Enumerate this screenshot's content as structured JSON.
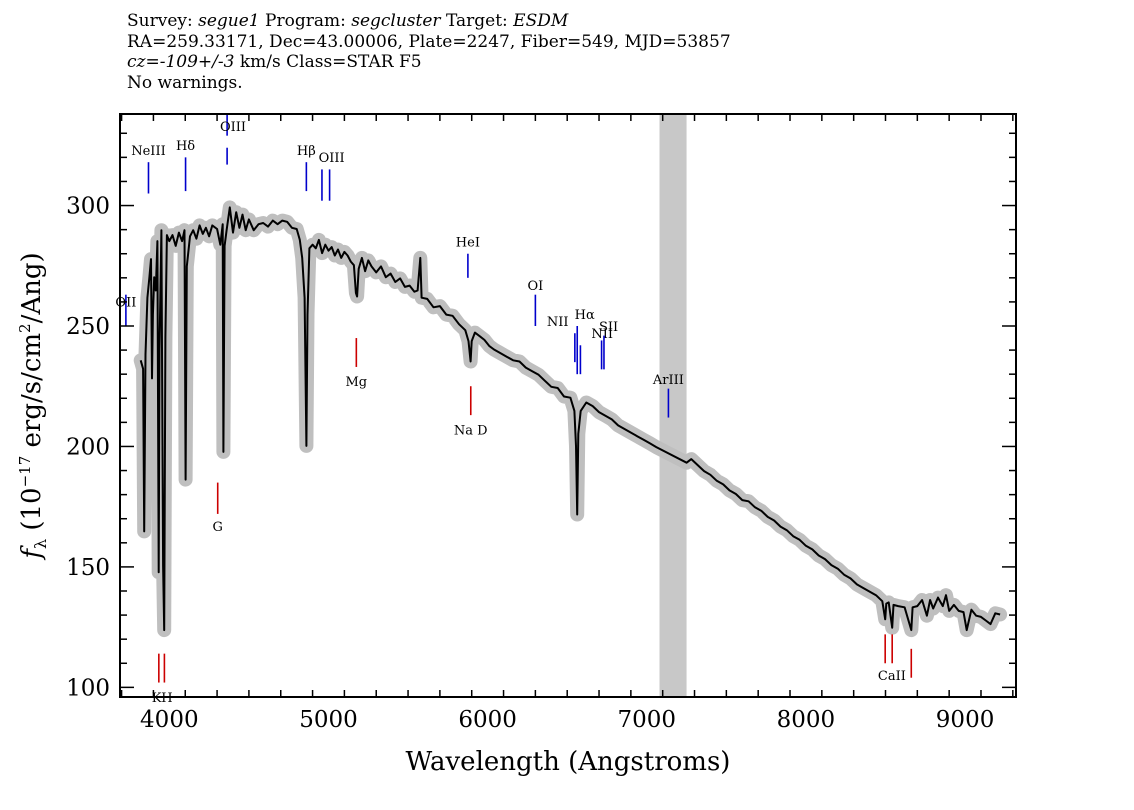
{
  "header": {
    "line1": [
      {
        "text": "Survey: ",
        "italic": false
      },
      {
        "text": "segue1",
        "italic": true
      },
      {
        "text": " Program: ",
        "italic": false
      },
      {
        "text": "segcluster",
        "italic": true
      },
      {
        "text": " Target: ",
        "italic": false
      },
      {
        "text": "ESDM",
        "italic": true
      }
    ],
    "line2": "RA=259.33171, Dec=43.00006, Plate=2247, Fiber=549, MJD=53857",
    "line3": [
      {
        "text": "cz=-109+/-3",
        "italic": true
      },
      {
        "text": " km/s Class=STAR F5",
        "italic": false
      }
    ],
    "line4": "No warnings."
  },
  "chart_data": {
    "type": "line",
    "xlabel": "Wavelength (Angstroms)",
    "ylabel_parts": {
      "f": "f",
      "sub": "λ",
      "open": " (10",
      "exp1": "−17",
      "mid": " erg/s/cm",
      "exp2": "2",
      "close": "/Ang)"
    },
    "xlim": [
      3690,
      9320
    ],
    "ylim": [
      96,
      338
    ],
    "xticks": [
      4000,
      5000,
      6000,
      7000,
      8000,
      9000
    ],
    "yticks": [
      100,
      150,
      200,
      250,
      300
    ],
    "masked_region": [
      7080,
      7250
    ],
    "series": [
      {
        "points": [
          [
            3820,
            236
          ],
          [
            3835,
            232
          ],
          [
            3842,
            165
          ],
          [
            3850,
            238
          ],
          [
            3862,
            262
          ],
          [
            3875,
            270
          ],
          [
            3885,
            278
          ],
          [
            3891,
            228
          ],
          [
            3897,
            255
          ],
          [
            3905,
            270
          ],
          [
            3915,
            265
          ],
          [
            3925,
            285
          ],
          [
            3933,
            148
          ],
          [
            3938,
            240
          ],
          [
            3950,
            290
          ],
          [
            3961,
            150
          ],
          [
            3968,
            124
          ],
          [
            3975,
            245
          ],
          [
            3985,
            288
          ],
          [
            4000,
            285
          ],
          [
            4020,
            288
          ],
          [
            4040,
            283
          ],
          [
            4060,
            289
          ],
          [
            4080,
            285
          ],
          [
            4095,
            290
          ],
          [
            4102,
            186
          ],
          [
            4110,
            275
          ],
          [
            4130,
            287
          ],
          [
            4150,
            290
          ],
          [
            4170,
            286
          ],
          [
            4190,
            292
          ],
          [
            4210,
            288
          ],
          [
            4230,
            291
          ],
          [
            4250,
            287
          ],
          [
            4270,
            292
          ],
          [
            4300,
            290
          ],
          [
            4320,
            284
          ],
          [
            4335,
            292
          ],
          [
            4340,
            198
          ],
          [
            4347,
            283
          ],
          [
            4360,
            290
          ],
          [
            4380,
            299
          ],
          [
            4400,
            289
          ],
          [
            4420,
            297
          ],
          [
            4440,
            291
          ],
          [
            4460,
            296
          ],
          [
            4480,
            290
          ],
          [
            4500,
            294
          ],
          [
            4530,
            290
          ],
          [
            4560,
            292
          ],
          [
            4590,
            293
          ],
          [
            4620,
            291
          ],
          [
            4650,
            294
          ],
          [
            4680,
            292
          ],
          [
            4710,
            294
          ],
          [
            4740,
            293
          ],
          [
            4770,
            291
          ],
          [
            4800,
            290
          ],
          [
            4820,
            286
          ],
          [
            4835,
            278
          ],
          [
            4850,
            262
          ],
          [
            4861,
            200
          ],
          [
            4868,
            255
          ],
          [
            4880,
            282
          ],
          [
            4900,
            284
          ],
          [
            4920,
            282
          ],
          [
            4940,
            286
          ],
          [
            4960,
            280
          ],
          [
            4980,
            284
          ],
          [
            5000,
            281
          ],
          [
            5020,
            283
          ],
          [
            5040,
            279
          ],
          [
            5060,
            282
          ],
          [
            5080,
            278
          ],
          [
            5100,
            281
          ],
          [
            5120,
            279
          ],
          [
            5140,
            277
          ],
          [
            5160,
            275
          ],
          [
            5172,
            264
          ],
          [
            5180,
            262
          ],
          [
            5190,
            274
          ],
          [
            5210,
            278
          ],
          [
            5230,
            273
          ],
          [
            5250,
            277
          ],
          [
            5270,
            275
          ],
          [
            5300,
            272
          ],
          [
            5330,
            275
          ],
          [
            5360,
            270
          ],
          [
            5390,
            272
          ],
          [
            5420,
            268
          ],
          [
            5450,
            270
          ],
          [
            5480,
            266
          ],
          [
            5510,
            267
          ],
          [
            5540,
            264
          ],
          [
            5560,
            265
          ],
          [
            5577,
            278
          ],
          [
            5585,
            262
          ],
          [
            5620,
            261
          ],
          [
            5660,
            258
          ],
          [
            5700,
            258
          ],
          [
            5740,
            255
          ],
          [
            5780,
            254
          ],
          [
            5820,
            251
          ],
          [
            5860,
            248
          ],
          [
            5880,
            244
          ],
          [
            5893,
            235
          ],
          [
            5900,
            244
          ],
          [
            5920,
            247
          ],
          [
            5950,
            246
          ],
          [
            5980,
            244
          ],
          [
            6010,
            242
          ],
          [
            6040,
            240
          ],
          [
            6080,
            239
          ],
          [
            6120,
            237
          ],
          [
            6160,
            236
          ],
          [
            6200,
            235
          ],
          [
            6240,
            233
          ],
          [
            6280,
            231
          ],
          [
            6320,
            230
          ],
          [
            6360,
            227
          ],
          [
            6400,
            225
          ],
          [
            6440,
            224
          ],
          [
            6480,
            221
          ],
          [
            6520,
            220
          ],
          [
            6545,
            215
          ],
          [
            6555,
            200
          ],
          [
            6563,
            172
          ],
          [
            6570,
            205
          ],
          [
            6585,
            215
          ],
          [
            6620,
            218
          ],
          [
            6660,
            217
          ],
          [
            6700,
            214
          ],
          [
            6740,
            213
          ],
          [
            6780,
            211
          ],
          [
            6820,
            209
          ],
          [
            6860,
            207
          ],
          [
            6900,
            206
          ],
          [
            6940,
            204
          ],
          [
            6980,
            203
          ],
          [
            7020,
            201
          ],
          [
            7060,
            200
          ],
          [
            7250,
            193
          ],
          [
            7280,
            195
          ],
          [
            7320,
            192
          ],
          [
            7360,
            190
          ],
          [
            7400,
            188
          ],
          [
            7440,
            186
          ],
          [
            7480,
            184
          ],
          [
            7520,
            182
          ],
          [
            7560,
            180
          ],
          [
            7600,
            178
          ],
          [
            7640,
            177
          ],
          [
            7680,
            175
          ],
          [
            7720,
            173
          ],
          [
            7760,
            171
          ],
          [
            7800,
            169
          ],
          [
            7840,
            167
          ],
          [
            7880,
            165
          ],
          [
            7920,
            163
          ],
          [
            7960,
            161
          ],
          [
            8000,
            159
          ],
          [
            8040,
            157
          ],
          [
            8080,
            155
          ],
          [
            8120,
            153
          ],
          [
            8160,
            151
          ],
          [
            8200,
            149
          ],
          [
            8240,
            147
          ],
          [
            8280,
            145
          ],
          [
            8320,
            143
          ],
          [
            8360,
            141
          ],
          [
            8400,
            140
          ],
          [
            8440,
            138
          ],
          [
            8480,
            136
          ],
          [
            8498,
            128
          ],
          [
            8505,
            135
          ],
          [
            8520,
            135
          ],
          [
            8542,
            125
          ],
          [
            8550,
            134
          ],
          [
            8580,
            134
          ],
          [
            8620,
            133
          ],
          [
            8662,
            124
          ],
          [
            8670,
            133
          ],
          [
            8700,
            134
          ],
          [
            8730,
            136
          ],
          [
            8760,
            130
          ],
          [
            8780,
            136
          ],
          [
            8800,
            133
          ],
          [
            8830,
            137
          ],
          [
            8860,
            134
          ],
          [
            8880,
            138
          ],
          [
            8900,
            132
          ],
          [
            8930,
            134
          ],
          [
            8960,
            132
          ],
          [
            8990,
            131
          ],
          [
            9010,
            124
          ],
          [
            9040,
            132
          ],
          [
            9070,
            130
          ],
          [
            9100,
            129
          ],
          [
            9130,
            128
          ],
          [
            9160,
            126
          ],
          [
            9190,
            131
          ],
          [
            9220,
            130
          ]
        ]
      }
    ],
    "lines": [
      {
        "label": "OII",
        "x": 3727,
        "y1": 263,
        "y2": 250,
        "color": "#0000cc",
        "lx": 3727,
        "ly": 258
      },
      {
        "label": "NeIII",
        "x": 3869,
        "y1": 318,
        "y2": 305,
        "color": "#0000cc",
        "lx": 3869,
        "ly": 321
      },
      {
        "label": "Hδ",
        "x": 4102,
        "y1": 320,
        "y2": 306,
        "color": "#0000cc",
        "lx": 4102,
        "ly": 323
      },
      {
        "label": "OIII",
        "x": 4363,
        "y1": 338,
        "y2": 329,
        "color": "#0000cc",
        "lx": 4400,
        "ly": 331
      },
      {
        "label": "OIII",
        "x": 4363,
        "y1": 324,
        "y2": 317,
        "color": "#0000cc",
        "lx": null,
        "ly": null
      },
      {
        "label": "Hβ",
        "x": 4861,
        "y1": 318,
        "y2": 306,
        "color": "#0000cc",
        "lx": 4861,
        "ly": 321
      },
      {
        "label": "OIII",
        "x": 4959,
        "y1": 315,
        "y2": 302,
        "color": "#0000cc",
        "lx": 5020,
        "ly": 318
      },
      {
        "label": "OIII",
        "x": 5007,
        "y1": 315,
        "y2": 302,
        "color": "#0000cc",
        "lx": null,
        "ly": null
      },
      {
        "label": "HeI",
        "x": 5876,
        "y1": 280,
        "y2": 270,
        "color": "#0000cc",
        "lx": 5876,
        "ly": 283
      },
      {
        "label": "OI",
        "x": 6300,
        "y1": 263,
        "y2": 250,
        "color": "#0000cc",
        "lx": 6300,
        "ly": 265
      },
      {
        "label": "NII",
        "x": 6548,
        "y1": 247,
        "y2": 235,
        "color": "#0000cc",
        "lx": 6440,
        "ly": 250
      },
      {
        "label": "Hα",
        "x": 6563,
        "y1": 250,
        "y2": 230,
        "color": "#0000cc",
        "lx": 6610,
        "ly": 253
      },
      {
        "label": "NII",
        "x": 6583,
        "y1": 242,
        "y2": 230,
        "color": "#0000cc",
        "lx": null,
        "ly": null
      },
      {
        "label": "NII",
        "x": 6716,
        "y1": 244,
        "y2": 232,
        "color": "#0000cc",
        "lx": 6720,
        "ly": 245
      },
      {
        "label": "SII",
        "x": 6731,
        "y1": 246,
        "y2": 232,
        "color": "#0000cc",
        "lx": 6760,
        "ly": 248
      },
      {
        "label": "ArIII",
        "x": 7136,
        "y1": 224,
        "y2": 212,
        "color": "#0000cc",
        "lx": 7136,
        "ly": 226
      },
      {
        "label": "Mg",
        "x": 5175,
        "y1": 245,
        "y2": 233,
        "color": "#cc0000",
        "lx": 5175,
        "ly": 225
      },
      {
        "label": "Na D",
        "x": 5894,
        "y1": 225,
        "y2": 213,
        "color": "#cc0000",
        "lx": 5894,
        "ly": 205
      },
      {
        "label": "G",
        "x": 4304,
        "y1": 185,
        "y2": 172,
        "color": "#cc0000",
        "lx": 4304,
        "ly": 165
      },
      {
        "label": "K",
        "x": 3934,
        "y1": 114,
        "y2": 102,
        "color": "#cc0000",
        "lx": 3920,
        "ly": 94
      },
      {
        "label": "H",
        "x": 3969,
        "y1": 114,
        "y2": 102,
        "color": "#cc0000",
        "lx": 3985,
        "ly": 94
      },
      {
        "label": "CaII",
        "x": 8498,
        "y1": 122,
        "y2": 110,
        "color": "#cc0000",
        "lx": 8540,
        "ly": 103
      },
      {
        "label": "CaII",
        "x": 8542,
        "y1": 122,
        "y2": 110,
        "color": "#cc0000",
        "lx": null,
        "ly": null
      },
      {
        "label": "CaII",
        "x": 8662,
        "y1": 116,
        "y2": 104,
        "color": "#cc0000",
        "lx": null,
        "ly": null
      }
    ]
  }
}
